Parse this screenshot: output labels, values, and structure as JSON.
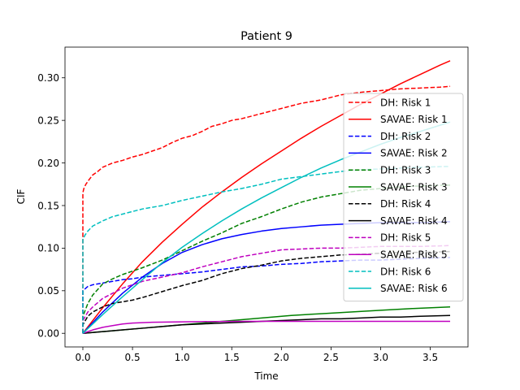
{
  "chart_data": {
    "type": "line",
    "title": "Patient 9",
    "xlabel": "Time",
    "ylabel": "CIF",
    "xlim": [
      -0.18,
      3.88
    ],
    "ylim": [
      -0.016,
      0.336
    ],
    "xticks": [
      0.0,
      0.5,
      1.0,
      1.5,
      2.0,
      2.5,
      3.0,
      3.5
    ],
    "xtick_labels": [
      "0.0",
      "0.5",
      "1.0",
      "1.5",
      "2.0",
      "2.5",
      "3.0",
      "3.5"
    ],
    "yticks": [
      0.0,
      0.05,
      0.1,
      0.15,
      0.2,
      0.25,
      0.3
    ],
    "ytick_labels": [
      "0.00",
      "0.05",
      "0.10",
      "0.15",
      "0.20",
      "0.25",
      "0.30"
    ],
    "grid": false,
    "legend_position": "right",
    "series": [
      {
        "name": "DH: Risk 1",
        "color": "#ff0000",
        "dash": true,
        "x": [
          0,
          0,
          0.01,
          0.03,
          0.06,
          0.1,
          0.15,
          0.2,
          0.3,
          0.4,
          0.5,
          0.6,
          0.7,
          0.8,
          0.9,
          1.0,
          1.1,
          1.2,
          1.3,
          1.4,
          1.5,
          1.6,
          1.7,
          1.8,
          1.9,
          2.0,
          2.2,
          2.4,
          2.6,
          2.8,
          3.0,
          3.2,
          3.4,
          3.6,
          3.7
        ],
        "y": [
          0.0,
          0.165,
          0.17,
          0.175,
          0.18,
          0.186,
          0.19,
          0.195,
          0.2,
          0.203,
          0.207,
          0.21,
          0.214,
          0.218,
          0.224,
          0.229,
          0.232,
          0.237,
          0.243,
          0.246,
          0.25,
          0.252,
          0.255,
          0.258,
          0.261,
          0.264,
          0.27,
          0.274,
          0.28,
          0.283,
          0.285,
          0.287,
          0.288,
          0.289,
          0.29
        ]
      },
      {
        "name": "SAVAE: Risk 1",
        "color": "#ff0000",
        "dash": false,
        "x": [
          0,
          0.2,
          0.4,
          0.6,
          0.8,
          1.0,
          1.2,
          1.4,
          1.6,
          1.8,
          2.0,
          2.2,
          2.4,
          2.6,
          2.8,
          3.0,
          3.2,
          3.4,
          3.6,
          3.7
        ],
        "y": [
          0.0,
          0.03,
          0.058,
          0.084,
          0.107,
          0.128,
          0.148,
          0.166,
          0.183,
          0.199,
          0.214,
          0.229,
          0.243,
          0.256,
          0.269,
          0.281,
          0.293,
          0.304,
          0.315,
          0.32
        ]
      },
      {
        "name": "DH: Risk 2",
        "color": "#0000ff",
        "dash": true,
        "x": [
          0,
          0,
          0.05,
          0.1,
          0.2,
          0.3,
          0.4,
          0.5,
          0.6,
          0.8,
          1.0,
          1.2,
          1.4,
          1.6,
          1.8,
          2.0,
          2.2,
          2.4,
          2.6,
          2.8,
          3.0,
          3.2,
          3.4,
          3.7
        ],
        "y": [
          0.0,
          0.05,
          0.055,
          0.057,
          0.059,
          0.061,
          0.063,
          0.064,
          0.066,
          0.068,
          0.07,
          0.072,
          0.075,
          0.078,
          0.079,
          0.081,
          0.082,
          0.084,
          0.085,
          0.086,
          0.086,
          0.087,
          0.088,
          0.089
        ]
      },
      {
        "name": "SAVAE: Risk 2",
        "color": "#0000ff",
        "dash": false,
        "x": [
          0,
          0.2,
          0.4,
          0.6,
          0.8,
          1.0,
          1.2,
          1.4,
          1.6,
          1.8,
          2.0,
          2.2,
          2.4,
          2.6,
          2.8,
          3.0,
          3.2,
          3.4,
          3.7
        ],
        "y": [
          0.0,
          0.025,
          0.047,
          0.066,
          0.082,
          0.095,
          0.104,
          0.111,
          0.116,
          0.12,
          0.123,
          0.125,
          0.127,
          0.128,
          0.129,
          0.13,
          0.13,
          0.13,
          0.131
        ]
      },
      {
        "name": "DH: Risk 3",
        "color": "#008000",
        "dash": true,
        "x": [
          0,
          0,
          0.05,
          0.1,
          0.2,
          0.3,
          0.4,
          0.5,
          0.6,
          0.8,
          1.0,
          1.2,
          1.4,
          1.6,
          1.8,
          2.0,
          2.2,
          2.4,
          2.6,
          2.8,
          3.0,
          3.2,
          3.4,
          3.7
        ],
        "y": [
          0.0,
          0.02,
          0.035,
          0.045,
          0.058,
          0.064,
          0.069,
          0.073,
          0.077,
          0.086,
          0.097,
          0.108,
          0.118,
          0.129,
          0.137,
          0.146,
          0.154,
          0.16,
          0.164,
          0.168,
          0.17,
          0.172,
          0.173,
          0.174
        ]
      },
      {
        "name": "SAVAE: Risk 3",
        "color": "#008000",
        "dash": false,
        "x": [
          0,
          0.3,
          0.6,
          0.9,
          1.2,
          1.5,
          1.8,
          2.1,
          2.4,
          2.7,
          3.0,
          3.3,
          3.7
        ],
        "y": [
          0.0,
          0.003,
          0.006,
          0.009,
          0.012,
          0.015,
          0.018,
          0.021,
          0.023,
          0.025,
          0.027,
          0.029,
          0.031
        ]
      },
      {
        "name": "DH: Risk 4",
        "color": "#000000",
        "dash": true,
        "x": [
          0,
          0,
          0.05,
          0.1,
          0.2,
          0.3,
          0.4,
          0.5,
          0.6,
          0.8,
          1.0,
          1.2,
          1.4,
          1.6,
          1.8,
          2.0,
          2.2,
          2.4,
          2.6,
          2.8,
          3.0,
          3.2,
          3.4,
          3.7
        ],
        "y": [
          0.0,
          0.01,
          0.02,
          0.025,
          0.031,
          0.035,
          0.037,
          0.039,
          0.042,
          0.049,
          0.056,
          0.062,
          0.07,
          0.076,
          0.08,
          0.085,
          0.088,
          0.09,
          0.092,
          0.093,
          0.094,
          0.095,
          0.095,
          0.096
        ]
      },
      {
        "name": "SAVAE: Risk 4",
        "color": "#000000",
        "dash": false,
        "x": [
          0,
          0.2,
          0.4,
          0.6,
          0.8,
          1.0,
          1.2,
          1.4,
          1.6,
          1.8,
          2.0,
          2.2,
          2.4,
          2.6,
          2.8,
          3.0,
          3.2,
          3.4,
          3.7
        ],
        "y": [
          0.0,
          0.002,
          0.004,
          0.006,
          0.008,
          0.01,
          0.011,
          0.012,
          0.013,
          0.014,
          0.015,
          0.016,
          0.017,
          0.017,
          0.018,
          0.019,
          0.019,
          0.02,
          0.021
        ]
      },
      {
        "name": "DH: Risk 5",
        "color": "#bf00bf",
        "dash": true,
        "x": [
          0,
          0,
          0.05,
          0.1,
          0.2,
          0.3,
          0.4,
          0.5,
          0.6,
          0.8,
          1.0,
          1.2,
          1.4,
          1.6,
          1.8,
          2.0,
          2.2,
          2.4,
          2.6,
          2.8,
          3.0,
          3.2,
          3.4,
          3.7
        ],
        "y": [
          0.0,
          0.015,
          0.025,
          0.031,
          0.041,
          0.047,
          0.053,
          0.057,
          0.061,
          0.066,
          0.071,
          0.078,
          0.084,
          0.09,
          0.094,
          0.098,
          0.099,
          0.1,
          0.1,
          0.101,
          0.102,
          0.102,
          0.102,
          0.103
        ]
      },
      {
        "name": "SAVAE: Risk 5",
        "color": "#bf00bf",
        "dash": false,
        "x": [
          0,
          0.1,
          0.2,
          0.3,
          0.4,
          0.5,
          0.7,
          1.0,
          1.5,
          2.0,
          2.5,
          3.0,
          3.7
        ],
        "y": [
          0.0,
          0.004,
          0.007,
          0.009,
          0.011,
          0.012,
          0.013,
          0.0135,
          0.014,
          0.014,
          0.014,
          0.014,
          0.014
        ]
      },
      {
        "name": "DH: Risk 6",
        "color": "#00bfbf",
        "dash": true,
        "x": [
          0,
          0,
          0.02,
          0.05,
          0.1,
          0.2,
          0.3,
          0.4,
          0.5,
          0.6,
          0.8,
          1.0,
          1.2,
          1.4,
          1.6,
          1.8,
          2.0,
          2.2,
          2.4,
          2.6,
          2.8,
          3.0,
          3.2,
          3.4,
          3.7
        ],
        "y": [
          0.0,
          0.11,
          0.115,
          0.12,
          0.126,
          0.132,
          0.137,
          0.14,
          0.143,
          0.146,
          0.15,
          0.156,
          0.161,
          0.166,
          0.17,
          0.175,
          0.181,
          0.184,
          0.187,
          0.19,
          0.192,
          0.193,
          0.194,
          0.195,
          0.196
        ]
      },
      {
        "name": "SAVAE: Risk 6",
        "color": "#00bfbf",
        "dash": false,
        "x": [
          0,
          0.2,
          0.4,
          0.6,
          0.8,
          1.0,
          1.2,
          1.4,
          1.6,
          1.8,
          2.0,
          2.2,
          2.4,
          2.6,
          2.8,
          3.0,
          3.2,
          3.4,
          3.7
        ],
        "y": [
          0.0,
          0.022,
          0.043,
          0.063,
          0.083,
          0.101,
          0.117,
          0.132,
          0.146,
          0.159,
          0.171,
          0.183,
          0.194,
          0.204,
          0.213,
          0.222,
          0.23,
          0.237,
          0.248
        ]
      }
    ]
  }
}
